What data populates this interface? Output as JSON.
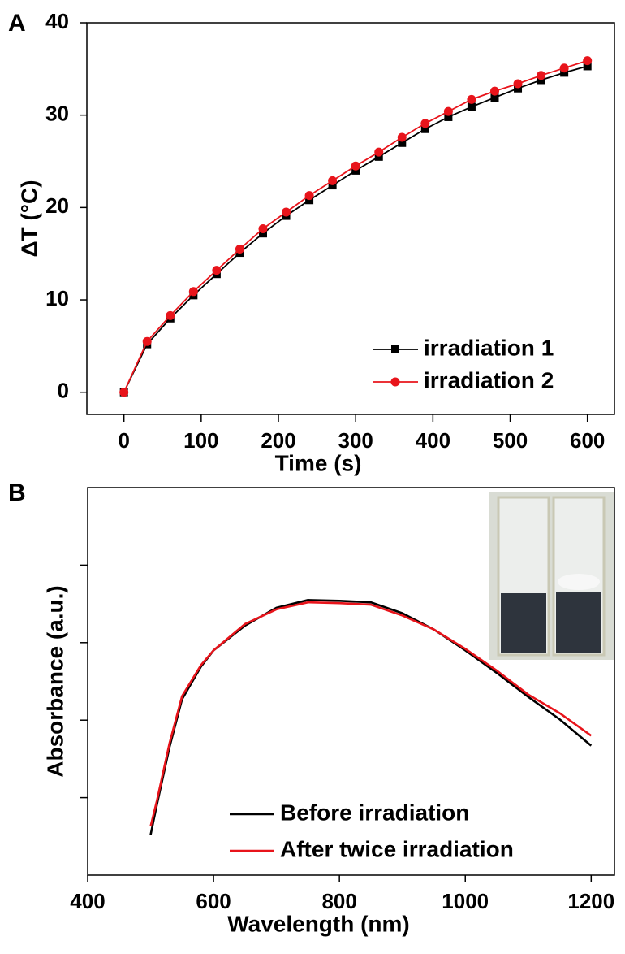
{
  "chart_data": [
    {
      "type": "line",
      "panel": "A",
      "xlabel": "Time (s)",
      "ylabel": "ΔT (°C)",
      "x": [
        0,
        30,
        60,
        90,
        120,
        150,
        180,
        210,
        240,
        270,
        300,
        330,
        360,
        390,
        420,
        450,
        480,
        510,
        540,
        570,
        600
      ],
      "series": [
        {
          "name": "irradiation 1",
          "color": "#000000",
          "marker": "square",
          "values": [
            0,
            5.2,
            8.0,
            10.5,
            12.8,
            15.1,
            17.2,
            19.1,
            20.8,
            22.4,
            24.0,
            25.5,
            27.0,
            28.5,
            29.8,
            30.9,
            31.9,
            32.9,
            33.8,
            34.6,
            35.3
          ]
        },
        {
          "name": "irradiation 2",
          "color": "#e8141b",
          "marker": "circle",
          "values": [
            0,
            5.5,
            8.3,
            10.9,
            13.2,
            15.5,
            17.7,
            19.5,
            21.3,
            22.9,
            24.5,
            26.0,
            27.6,
            29.1,
            30.4,
            31.7,
            32.6,
            33.4,
            34.3,
            35.1,
            35.9
          ]
        }
      ],
      "xlim": [
        -48,
        635
      ],
      "xticks": [
        0,
        100,
        200,
        300,
        400,
        500,
        600
      ],
      "ylim": [
        -2.4,
        40
      ],
      "yticks": [
        0,
        10,
        20,
        30,
        40
      ],
      "legend": "lower right"
    },
    {
      "type": "line",
      "panel": "B",
      "xlabel": "Wavelength (nm)",
      "ylabel": "Absorbance (a.u.)",
      "x": [
        500,
        510,
        530,
        550,
        580,
        600,
        650,
        700,
        750,
        800,
        850,
        900,
        950,
        1000,
        1050,
        1100,
        1150,
        1200
      ],
      "series": [
        {
          "name": "Before irradiation",
          "color": "#000000",
          "marker": "none",
          "values": [
            0.52,
            0.91,
            1.65,
            2.27,
            2.69,
            2.9,
            3.22,
            3.45,
            3.55,
            3.54,
            3.52,
            3.38,
            3.17,
            2.9,
            2.61,
            2.3,
            2.01,
            1.67
          ]
        },
        {
          "name": "After twice irradiation",
          "color": "#e8141b",
          "marker": "none",
          "values": [
            0.63,
            0.96,
            1.7,
            2.31,
            2.71,
            2.9,
            3.24,
            3.43,
            3.52,
            3.51,
            3.49,
            3.35,
            3.17,
            2.92,
            2.64,
            2.33,
            2.09,
            1.8
          ]
        }
      ],
      "xlim": [
        400,
        1237
      ],
      "xticks": [
        400,
        600,
        800,
        1000,
        1200
      ],
      "ylim": [
        0,
        5
      ],
      "yticks": [
        1,
        2,
        3,
        4
      ],
      "ytick_labels": false,
      "legend": "lower right"
    }
  ]
}
